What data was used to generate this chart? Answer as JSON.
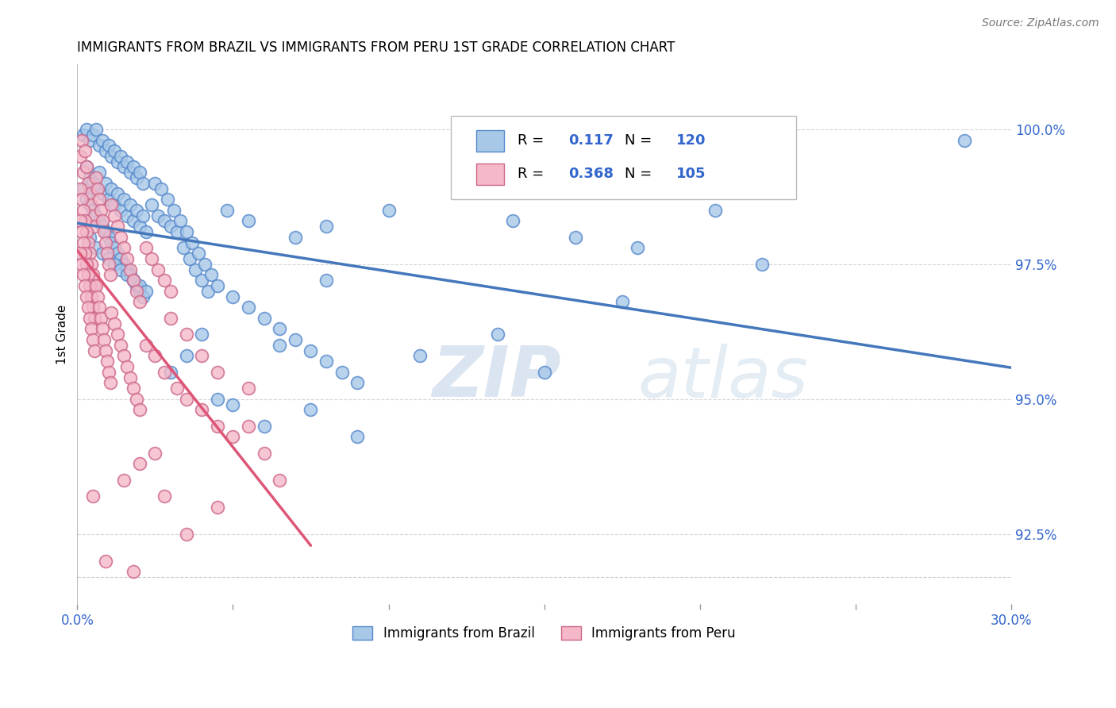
{
  "title": "IMMIGRANTS FROM BRAZIL VS IMMIGRANTS FROM PERU 1ST GRADE CORRELATION CHART",
  "source": "Source: ZipAtlas.com",
  "ylabel": "1st Grade",
  "ylabel_ticks": [
    92.5,
    95.0,
    97.5,
    100.0
  ],
  "ylabel_labels": [
    "92.5%",
    "95.0%",
    "97.5%",
    "100.0%"
  ],
  "xtick_positions": [
    0.0,
    30.0
  ],
  "xtick_labels": [
    "0.0%",
    "30.0%"
  ],
  "xmin": 0.0,
  "xmax": 30.0,
  "ymin": 91.2,
  "ymax": 101.2,
  "brazil_color": "#a8c8e8",
  "peru_color": "#f4b8c8",
  "brazil_edge": "#5588cc",
  "peru_edge": "#cc6688",
  "brazil_R": 0.117,
  "brazil_N": 120,
  "peru_R": 0.368,
  "peru_N": 105,
  "brazil_line_color": "#4477bb",
  "peru_line_color": "#dd5577",
  "watermark_zip": "ZIP",
  "watermark_atlas": "atlas",
  "legend_label_brazil": "Immigrants from Brazil",
  "legend_label_peru": "Immigrants from Peru",
  "brazil_scatter": [
    [
      0.2,
      99.9
    ],
    [
      0.3,
      100.0
    ],
    [
      0.4,
      99.8
    ],
    [
      0.5,
      99.9
    ],
    [
      0.6,
      100.0
    ],
    [
      0.7,
      99.7
    ],
    [
      0.8,
      99.8
    ],
    [
      0.9,
      99.6
    ],
    [
      1.0,
      99.7
    ],
    [
      1.1,
      99.5
    ],
    [
      1.2,
      99.6
    ],
    [
      1.3,
      99.4
    ],
    [
      1.4,
      99.5
    ],
    [
      1.5,
      99.3
    ],
    [
      1.6,
      99.4
    ],
    [
      1.7,
      99.2
    ],
    [
      1.8,
      99.3
    ],
    [
      1.9,
      99.1
    ],
    [
      2.0,
      99.2
    ],
    [
      2.1,
      99.0
    ],
    [
      0.3,
      99.3
    ],
    [
      0.4,
      99.1
    ],
    [
      0.5,
      99.0
    ],
    [
      0.6,
      98.9
    ],
    [
      0.7,
      99.2
    ],
    [
      0.8,
      98.8
    ],
    [
      0.9,
      99.0
    ],
    [
      1.0,
      98.7
    ],
    [
      1.1,
      98.9
    ],
    [
      1.2,
      98.6
    ],
    [
      1.3,
      98.8
    ],
    [
      1.4,
      98.5
    ],
    [
      1.5,
      98.7
    ],
    [
      1.6,
      98.4
    ],
    [
      1.7,
      98.6
    ],
    [
      1.8,
      98.3
    ],
    [
      1.9,
      98.5
    ],
    [
      2.0,
      98.2
    ],
    [
      2.1,
      98.4
    ],
    [
      2.2,
      98.1
    ],
    [
      0.2,
      98.9
    ],
    [
      0.3,
      98.7
    ],
    [
      0.4,
      98.6
    ],
    [
      0.5,
      98.5
    ],
    [
      0.6,
      98.4
    ],
    [
      0.7,
      98.3
    ],
    [
      0.8,
      98.2
    ],
    [
      0.9,
      98.1
    ],
    [
      1.0,
      98.0
    ],
    [
      1.1,
      97.9
    ],
    [
      1.2,
      97.8
    ],
    [
      1.3,
      97.7
    ],
    [
      1.4,
      97.6
    ],
    [
      1.5,
      97.5
    ],
    [
      1.6,
      97.4
    ],
    [
      1.7,
      97.3
    ],
    [
      1.8,
      97.2
    ],
    [
      1.9,
      97.1
    ],
    [
      2.0,
      97.0
    ],
    [
      2.1,
      96.9
    ],
    [
      0.4,
      98.0
    ],
    [
      0.6,
      97.8
    ],
    [
      0.8,
      97.7
    ],
    [
      1.0,
      97.6
    ],
    [
      1.2,
      97.5
    ],
    [
      1.4,
      97.4
    ],
    [
      1.6,
      97.3
    ],
    [
      1.8,
      97.2
    ],
    [
      2.0,
      97.1
    ],
    [
      2.2,
      97.0
    ],
    [
      2.4,
      98.6
    ],
    [
      2.6,
      98.4
    ],
    [
      2.8,
      98.3
    ],
    [
      3.0,
      98.2
    ],
    [
      3.2,
      98.1
    ],
    [
      3.4,
      97.8
    ],
    [
      3.6,
      97.6
    ],
    [
      3.8,
      97.4
    ],
    [
      4.0,
      97.2
    ],
    [
      4.2,
      97.0
    ],
    [
      2.5,
      99.0
    ],
    [
      2.7,
      98.9
    ],
    [
      2.9,
      98.7
    ],
    [
      3.1,
      98.5
    ],
    [
      3.3,
      98.3
    ],
    [
      3.5,
      98.1
    ],
    [
      3.7,
      97.9
    ],
    [
      3.9,
      97.7
    ],
    [
      4.1,
      97.5
    ],
    [
      4.3,
      97.3
    ],
    [
      4.5,
      97.1
    ],
    [
      5.0,
      96.9
    ],
    [
      5.5,
      96.7
    ],
    [
      6.0,
      96.5
    ],
    [
      6.5,
      96.3
    ],
    [
      7.0,
      96.1
    ],
    [
      7.5,
      95.9
    ],
    [
      8.0,
      95.7
    ],
    [
      8.5,
      95.5
    ],
    [
      9.0,
      95.3
    ],
    [
      4.8,
      98.5
    ],
    [
      5.5,
      98.3
    ],
    [
      7.0,
      98.0
    ],
    [
      8.0,
      98.2
    ],
    [
      10.0,
      98.5
    ],
    [
      14.0,
      98.3
    ],
    [
      16.0,
      98.0
    ],
    [
      18.0,
      97.8
    ],
    [
      20.5,
      98.5
    ],
    [
      28.5,
      99.8
    ],
    [
      11.0,
      95.8
    ],
    [
      13.5,
      96.2
    ],
    [
      15.0,
      95.5
    ],
    [
      17.5,
      96.8
    ],
    [
      22.0,
      97.5
    ],
    [
      5.0,
      94.9
    ],
    [
      6.0,
      94.5
    ],
    [
      7.5,
      94.8
    ],
    [
      9.0,
      94.3
    ],
    [
      4.5,
      95.0
    ],
    [
      3.0,
      95.5
    ],
    [
      3.5,
      95.8
    ],
    [
      4.0,
      96.2
    ],
    [
      6.5,
      96.0
    ],
    [
      8.0,
      97.2
    ]
  ],
  "peru_scatter": [
    [
      0.1,
      99.5
    ],
    [
      0.15,
      99.8
    ],
    [
      0.2,
      99.2
    ],
    [
      0.25,
      99.6
    ],
    [
      0.3,
      99.3
    ],
    [
      0.35,
      99.0
    ],
    [
      0.4,
      98.8
    ],
    [
      0.45,
      98.6
    ],
    [
      0.5,
      98.4
    ],
    [
      0.55,
      98.2
    ],
    [
      0.1,
      98.9
    ],
    [
      0.15,
      98.7
    ],
    [
      0.2,
      98.5
    ],
    [
      0.25,
      98.3
    ],
    [
      0.3,
      98.1
    ],
    [
      0.35,
      97.9
    ],
    [
      0.4,
      97.7
    ],
    [
      0.45,
      97.5
    ],
    [
      0.5,
      97.3
    ],
    [
      0.55,
      97.1
    ],
    [
      0.1,
      98.3
    ],
    [
      0.15,
      98.1
    ],
    [
      0.2,
      97.9
    ],
    [
      0.25,
      97.7
    ],
    [
      0.3,
      97.5
    ],
    [
      0.35,
      97.3
    ],
    [
      0.4,
      97.1
    ],
    [
      0.45,
      96.9
    ],
    [
      0.5,
      96.7
    ],
    [
      0.55,
      96.5
    ],
    [
      0.1,
      97.7
    ],
    [
      0.15,
      97.5
    ],
    [
      0.2,
      97.3
    ],
    [
      0.25,
      97.1
    ],
    [
      0.3,
      96.9
    ],
    [
      0.35,
      96.7
    ],
    [
      0.4,
      96.5
    ],
    [
      0.45,
      96.3
    ],
    [
      0.5,
      96.1
    ],
    [
      0.55,
      95.9
    ],
    [
      0.6,
      99.1
    ],
    [
      0.65,
      98.9
    ],
    [
      0.7,
      98.7
    ],
    [
      0.75,
      98.5
    ],
    [
      0.8,
      98.3
    ],
    [
      0.85,
      98.1
    ],
    [
      0.9,
      97.9
    ],
    [
      0.95,
      97.7
    ],
    [
      1.0,
      97.5
    ],
    [
      1.05,
      97.3
    ],
    [
      0.6,
      97.1
    ],
    [
      0.65,
      96.9
    ],
    [
      0.7,
      96.7
    ],
    [
      0.75,
      96.5
    ],
    [
      0.8,
      96.3
    ],
    [
      0.85,
      96.1
    ],
    [
      0.9,
      95.9
    ],
    [
      0.95,
      95.7
    ],
    [
      1.0,
      95.5
    ],
    [
      1.05,
      95.3
    ],
    [
      1.1,
      98.6
    ],
    [
      1.2,
      98.4
    ],
    [
      1.3,
      98.2
    ],
    [
      1.4,
      98.0
    ],
    [
      1.5,
      97.8
    ],
    [
      1.6,
      97.6
    ],
    [
      1.7,
      97.4
    ],
    [
      1.8,
      97.2
    ],
    [
      1.9,
      97.0
    ],
    [
      2.0,
      96.8
    ],
    [
      1.1,
      96.6
    ],
    [
      1.2,
      96.4
    ],
    [
      1.3,
      96.2
    ],
    [
      1.4,
      96.0
    ],
    [
      1.5,
      95.8
    ],
    [
      1.6,
      95.6
    ],
    [
      1.7,
      95.4
    ],
    [
      1.8,
      95.2
    ],
    [
      1.9,
      95.0
    ],
    [
      2.0,
      94.8
    ],
    [
      2.2,
      97.8
    ],
    [
      2.4,
      97.6
    ],
    [
      2.6,
      97.4
    ],
    [
      2.8,
      97.2
    ],
    [
      3.0,
      97.0
    ],
    [
      2.2,
      96.0
    ],
    [
      2.5,
      95.8
    ],
    [
      2.8,
      95.5
    ],
    [
      3.2,
      95.2
    ],
    [
      3.5,
      95.0
    ],
    [
      4.0,
      94.8
    ],
    [
      4.5,
      94.5
    ],
    [
      5.0,
      94.3
    ],
    [
      5.5,
      94.5
    ],
    [
      6.0,
      94.0
    ],
    [
      3.0,
      96.5
    ],
    [
      3.5,
      96.2
    ],
    [
      4.0,
      95.8
    ],
    [
      4.5,
      95.5
    ],
    [
      5.5,
      95.2
    ],
    [
      1.5,
      93.5
    ],
    [
      2.0,
      93.8
    ],
    [
      2.5,
      94.0
    ],
    [
      0.5,
      93.2
    ],
    [
      6.5,
      93.5
    ],
    [
      1.8,
      91.8
    ],
    [
      3.5,
      92.5
    ],
    [
      0.9,
      92.0
    ],
    [
      4.5,
      93.0
    ],
    [
      2.8,
      93.2
    ]
  ]
}
